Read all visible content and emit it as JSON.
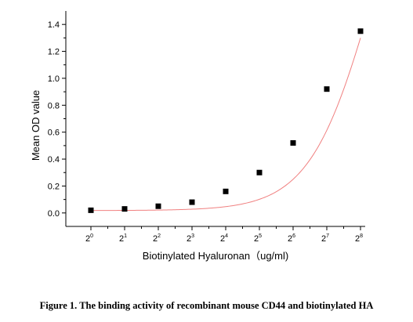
{
  "chart_data": {
    "type": "line",
    "xlabel": "Biotinylated Hyaluronan（ug/ml)",
    "ylabel": "Mean OD value",
    "x_tick_base": "2",
    "x_tick_exponents": [
      "0",
      "1",
      "2",
      "3",
      "4",
      "5",
      "6",
      "7",
      "8"
    ],
    "x": [
      1,
      2,
      4,
      8,
      16,
      32,
      64,
      128,
      256
    ],
    "x_scale": "log2",
    "ylim": [
      -0.1,
      1.5
    ],
    "y_ticks": [
      "0.0",
      "0.2",
      "0.4",
      "0.6",
      "0.8",
      "1.0",
      "1.2",
      "1.4"
    ],
    "series": [
      {
        "values": [
          0.02,
          0.03,
          0.05,
          0.08,
          0.16,
          0.3,
          0.52,
          0.92,
          1.35
        ],
        "marker": "square",
        "marker_color": "#000000",
        "fit_line_color": "#f08080"
      }
    ],
    "grid": false,
    "legend": "none"
  },
  "caption": "Figure 1. The binding activity of recombinant mouse CD44 and biotinylated HA"
}
